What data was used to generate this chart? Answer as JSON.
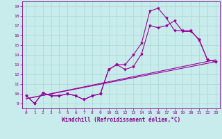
{
  "xlabel": "Windchill (Refroidissement éolien,°C)",
  "bg_color": "#c8ecec",
  "grid_color": "#b0d8d8",
  "line_color": "#990099",
  "xlim": [
    -0.5,
    23.5
  ],
  "ylim": [
    8.5,
    19.5
  ],
  "yticks": [
    9,
    10,
    11,
    12,
    13,
    14,
    15,
    16,
    17,
    18,
    19
  ],
  "xticks": [
    0,
    1,
    2,
    3,
    4,
    5,
    6,
    7,
    8,
    9,
    10,
    11,
    12,
    13,
    14,
    15,
    16,
    17,
    18,
    19,
    20,
    21,
    22,
    23
  ],
  "line1_x": [
    0,
    1,
    2,
    3,
    4,
    5,
    6,
    7,
    8,
    9,
    10,
    11,
    12,
    13,
    14,
    15,
    16,
    17,
    18,
    19,
    20,
    21,
    22,
    23
  ],
  "line1_y": [
    9.8,
    9.0,
    10.1,
    9.8,
    9.8,
    10.0,
    9.8,
    9.4,
    9.8,
    10.0,
    12.5,
    13.0,
    13.0,
    14.0,
    15.2,
    18.5,
    18.8,
    17.8,
    16.5,
    16.5,
    16.5,
    15.5,
    13.5,
    13.3
  ],
  "line2_x": [
    0,
    1,
    2,
    3,
    4,
    5,
    6,
    7,
    8,
    9,
    10,
    11,
    12,
    13,
    14,
    15,
    16,
    17,
    18,
    19,
    20,
    21,
    22,
    23
  ],
  "line2_y": [
    9.8,
    9.0,
    10.1,
    9.8,
    9.8,
    10.0,
    9.8,
    9.4,
    9.8,
    10.0,
    12.5,
    13.0,
    12.5,
    12.8,
    14.1,
    17.0,
    16.8,
    17.0,
    17.5,
    16.4,
    16.4,
    15.6,
    13.5,
    13.3
  ],
  "line3_x": [
    0,
    23
  ],
  "line3_y": [
    9.5,
    13.3
  ],
  "line4_x": [
    0,
    23
  ],
  "line4_y": [
    9.5,
    13.5
  ],
  "marker": "v",
  "markersize": 2.0,
  "linewidth": 0.8,
  "tick_fontsize": 4.5,
  "xlabel_fontsize": 5.5,
  "tick_color": "#880088",
  "spine_color": "#880088"
}
